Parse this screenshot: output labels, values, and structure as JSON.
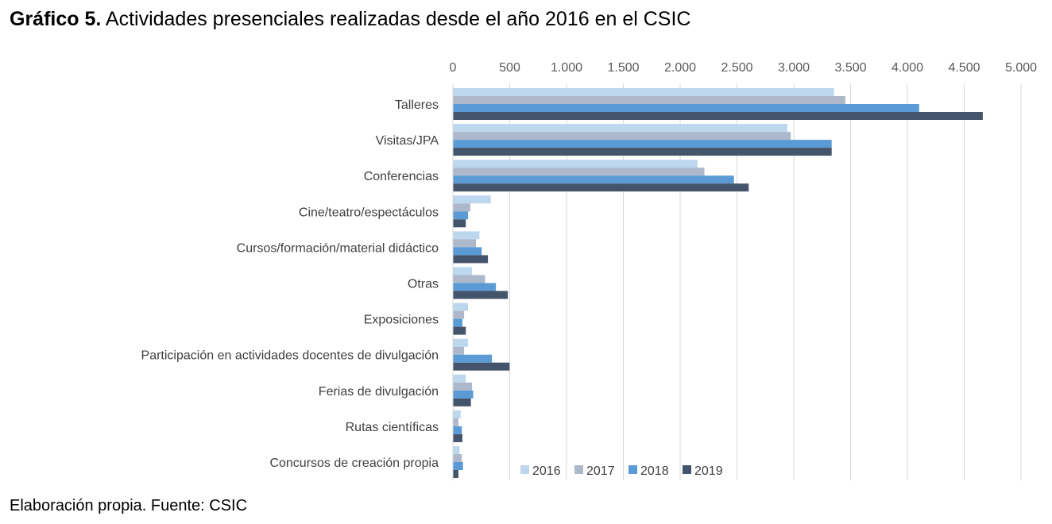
{
  "header": {
    "title_bold": "Gráfico 5.",
    "title_rest": " Actividades presenciales realizadas desde el año 2016 en el CSIC"
  },
  "footer": {
    "source": "Elaboración propia. Fuente: CSIC"
  },
  "chart_data": {
    "type": "bar",
    "orientation": "horizontal",
    "xlim": [
      0,
      5000
    ],
    "x_ticks": [
      0,
      500,
      1000,
      1500,
      2000,
      2500,
      3000,
      3500,
      4000,
      4500,
      5000
    ],
    "x_tick_labels": [
      "0",
      "500",
      "1.000",
      "1.500",
      "2.000",
      "2.500",
      "3.000",
      "3.500",
      "4.000",
      "4.500",
      "5.000"
    ],
    "axis_position": "top",
    "grid": true,
    "legend_position": "bottom-right",
    "categories": [
      "Talleres",
      "Visitas/JPA",
      "Conferencias",
      "Cine/teatro/espectáculos",
      "Cursos/formación/material didáctico",
      "Otras",
      "Exposiciones",
      "Participación en actividades docentes de divulgación",
      "Ferias de divulgación",
      "Rutas científicas",
      "Concursos de creación propia"
    ],
    "series": [
      {
        "name": "2016",
        "color": "#bdd7ee",
        "values": [
          3350,
          2940,
          2150,
          330,
          230,
          165,
          130,
          130,
          110,
          65,
          55
        ]
      },
      {
        "name": "2017",
        "color": "#adb9ca",
        "values": [
          3450,
          2970,
          2210,
          150,
          200,
          280,
          95,
          95,
          165,
          45,
          75
        ]
      },
      {
        "name": "2018",
        "color": "#5b9bd5",
        "values": [
          4100,
          3330,
          2470,
          130,
          250,
          375,
          80,
          340,
          175,
          75,
          85
        ]
      },
      {
        "name": "2019",
        "color": "#44546a",
        "values": [
          4660,
          3330,
          2600,
          110,
          305,
          480,
          110,
          495,
          155,
          80,
          45
        ]
      }
    ]
  }
}
